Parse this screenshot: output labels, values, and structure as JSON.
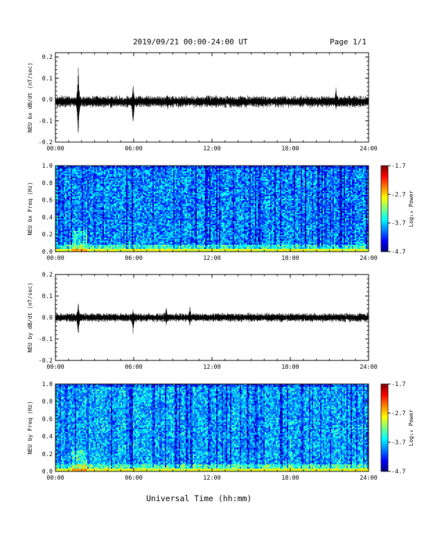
{
  "page": {
    "date_range": "2019/09/21  00:00-24:00 UT",
    "page_label": "Page 1/1",
    "xaxis_title": "Universal Time (hh:mm)"
  },
  "chart_data": [
    {
      "type": "line",
      "ylabel": "NEU bx dB/dt (nT/sec)",
      "xlim": [
        0,
        24
      ],
      "ylim": [
        -0.2,
        0.22
      ],
      "x_ticks": [
        "00:00",
        "06:00",
        "12:00",
        "18:00",
        "24:00"
      ],
      "y_ticks": [
        "-0.2",
        "-0.1",
        "0.0",
        "0.1",
        "0.2"
      ],
      "y_tick_values": [
        -0.2,
        -0.1,
        0.0,
        0.1,
        0.2
      ],
      "baseline": -0.01,
      "noise_amplitude": 0.02,
      "spikes": [
        {
          "hour": 1.75,
          "max": 0.16,
          "min": -0.2
        },
        {
          "hour": 5.95,
          "max": 0.08,
          "min": -0.14
        },
        {
          "hour": 8.6,
          "max": 0.03,
          "min": -0.05
        },
        {
          "hour": 21.5,
          "max": 0.06,
          "min": -0.05
        }
      ],
      "color": "#000000"
    },
    {
      "type": "heatmap",
      "ylabel": "NEU bx Freq (Hz)",
      "xlim": [
        0,
        24
      ],
      "ylim": [
        0,
        1.0
      ],
      "x_ticks": [
        "00:00",
        "06:00",
        "12:00",
        "18:00",
        "24:00"
      ],
      "y_ticks": [
        "0.0",
        "0.2",
        "0.4",
        "0.6",
        "0.8",
        "1.0"
      ],
      "y_tick_values": [
        0,
        0.2,
        0.4,
        0.6,
        0.8,
        1.0
      ],
      "colorbar": {
        "label": "Log₁₀ Power",
        "min": -4.7,
        "max": -1.7,
        "ticks": [
          "-1.7",
          "-2.7",
          "-3.7",
          "-4.7"
        ]
      },
      "dominant_value": -3.9,
      "low_freq_enhancement": -2.9
    },
    {
      "type": "line",
      "ylabel": "NEU by dB/dt (nT/sec)",
      "xlim": [
        0,
        24
      ],
      "ylim": [
        -0.2,
        0.2
      ],
      "x_ticks": [
        "00:00",
        "06:00",
        "12:00",
        "18:00",
        "24:00"
      ],
      "y_ticks": [
        "-0.2",
        "-0.1",
        "0.0",
        "0.1",
        "0.2"
      ],
      "y_tick_values": [
        -0.2,
        -0.1,
        0.0,
        0.1,
        0.2
      ],
      "baseline": 0.0,
      "noise_amplitude": 0.015,
      "spikes": [
        {
          "hour": 1.75,
          "max": 0.08,
          "min": -0.1
        },
        {
          "hour": 5.95,
          "max": 0.04,
          "min": -0.08
        },
        {
          "hour": 8.5,
          "max": 0.05,
          "min": -0.04
        },
        {
          "hour": 10.3,
          "max": 0.06,
          "min": -0.04
        }
      ],
      "color": "#000000"
    },
    {
      "type": "heatmap",
      "ylabel": "NEU by Freq (Hz)",
      "xlim": [
        0,
        24
      ],
      "ylim": [
        0,
        1.0
      ],
      "x_ticks": [
        "00:00",
        "06:00",
        "12:00",
        "18:00",
        "24:00"
      ],
      "y_ticks": [
        "0.0",
        "0.2",
        "0.4",
        "0.6",
        "0.8",
        "1.0"
      ],
      "y_tick_values": [
        0,
        0.2,
        0.4,
        0.6,
        0.8,
        1.0
      ],
      "colorbar": {
        "label": "Log₁₀ Power",
        "min": -4.7,
        "max": -1.7,
        "ticks": [
          "-1.7",
          "-2.7",
          "-3.7",
          "-4.7"
        ]
      },
      "dominant_value": -3.8,
      "low_freq_enhancement": -2.9
    }
  ]
}
